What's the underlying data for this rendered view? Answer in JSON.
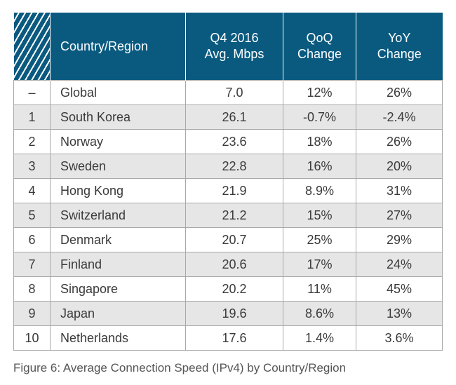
{
  "table": {
    "headers": {
      "country": "Country/Region",
      "speed_line1": "Q4 2016",
      "speed_line2": "Avg. Mbps",
      "qoq_line1": "QoQ",
      "qoq_line2": "Change",
      "yoy_line1": "YoY",
      "yoy_line2": "Change"
    },
    "rows": [
      {
        "rank": "–",
        "country": "Global",
        "speed": "7.0",
        "qoq": "12%",
        "yoy": "26%"
      },
      {
        "rank": "1",
        "country": "South Korea",
        "speed": "26.1",
        "qoq": "-0.7%",
        "yoy": "-2.4%"
      },
      {
        "rank": "2",
        "country": "Norway",
        "speed": "23.6",
        "qoq": "18%",
        "yoy": "26%"
      },
      {
        "rank": "3",
        "country": "Sweden",
        "speed": "22.8",
        "qoq": "16%",
        "yoy": "20%"
      },
      {
        "rank": "4",
        "country": "Hong Kong",
        "speed": "21.9",
        "qoq": "8.9%",
        "yoy": "31%"
      },
      {
        "rank": "5",
        "country": "Switzerland",
        "speed": "21.2",
        "qoq": "15%",
        "yoy": "27%"
      },
      {
        "rank": "6",
        "country": "Denmark",
        "speed": "20.7",
        "qoq": "25%",
        "yoy": "29%"
      },
      {
        "rank": "7",
        "country": "Finland",
        "speed": "20.6",
        "qoq": "17%",
        "yoy": "24%"
      },
      {
        "rank": "8",
        "country": "Singapore",
        "speed": "20.2",
        "qoq": "11%",
        "yoy": "45%"
      },
      {
        "rank": "9",
        "country": "Japan",
        "speed": "19.6",
        "qoq": "8.6%",
        "yoy": "13%"
      },
      {
        "rank": "10",
        "country": "Netherlands",
        "speed": "17.6",
        "qoq": "1.4%",
        "yoy": "3.6%"
      }
    ]
  },
  "caption": "Figure 6: Average Connection Speed (IPv4) by Country/Region",
  "colors": {
    "header_bg": "#0a5a80",
    "row_shade": "#e6e6e6"
  }
}
